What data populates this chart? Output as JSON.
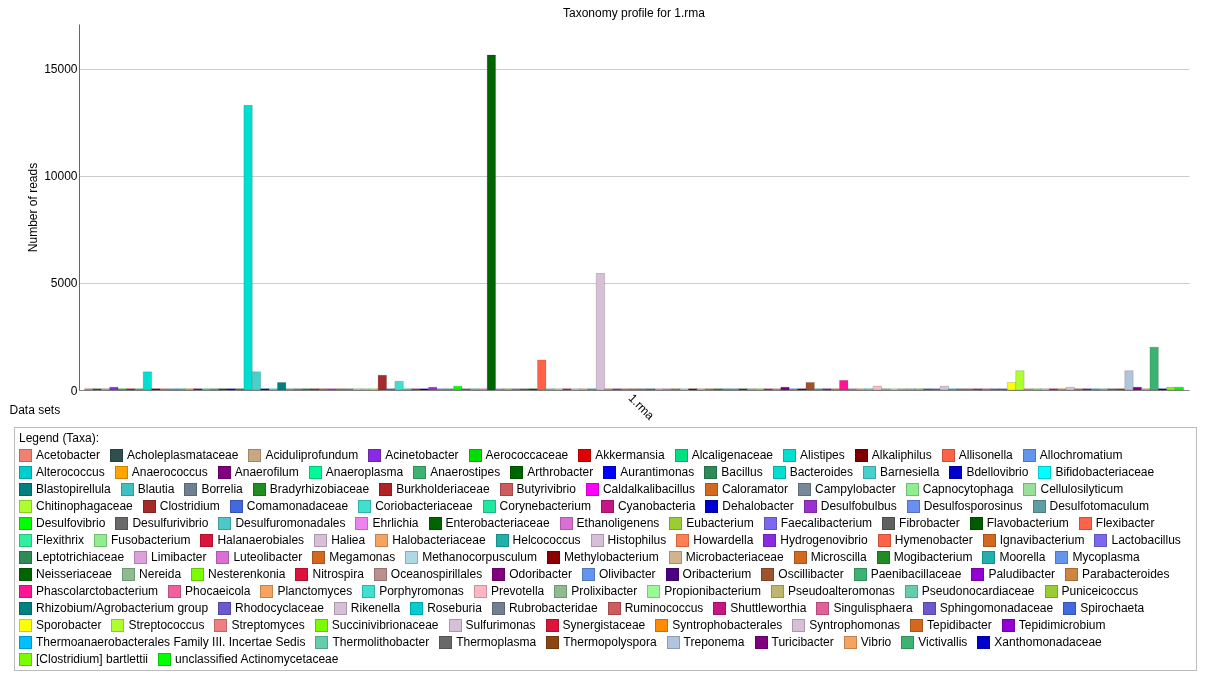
{
  "chart_data": {
    "type": "bar",
    "title": "Taxonomy profile for 1.rma",
    "xlabel": "Data sets",
    "ylabel": "Number of reads",
    "legend_title": "Legend (Taxa):",
    "categories": [
      "1.rma"
    ],
    "ylim": [
      0,
      17100
    ],
    "yticks": [
      0,
      5000,
      10000,
      15000
    ],
    "grid": "y",
    "legend": "bottom",
    "series": [
      {
        "name": "Acetobacter",
        "color": "#f08070",
        "values": [
          60
        ]
      },
      {
        "name": "Acholeplasmataceae",
        "color": "#2f4f4f",
        "values": [
          60
        ]
      },
      {
        "name": "Aciduliprofundum",
        "color": "#c8a882",
        "values": [
          60
        ]
      },
      {
        "name": "Acinetobacter",
        "color": "#8a2be2",
        "values": [
          130
        ]
      },
      {
        "name": "Aerococcaceae",
        "color": "#00e000",
        "values": [
          60
        ]
      },
      {
        "name": "Akkermansia",
        "color": "#e00000",
        "values": [
          60
        ]
      },
      {
        "name": "Alcaligenaceae",
        "color": "#00e080",
        "values": [
          60
        ]
      },
      {
        "name": "Alistipes",
        "color": "#00dfd0",
        "values": [
          850
        ]
      },
      {
        "name": "Alkaliphilus",
        "color": "#800000",
        "values": [
          60
        ]
      },
      {
        "name": "Allisonella",
        "color": "#ff6347",
        "values": [
          60
        ]
      },
      {
        "name": "Allochromatium",
        "color": "#6495ed",
        "values": [
          60
        ]
      },
      {
        "name": "Alterococcus",
        "color": "#00cecd",
        "values": [
          60
        ]
      },
      {
        "name": "Anaerococcus",
        "color": "#ffa500",
        "values": [
          60
        ]
      },
      {
        "name": "Anaerofilum",
        "color": "#800080",
        "values": [
          60
        ]
      },
      {
        "name": "Anaeroplasma",
        "color": "#00fa9a",
        "values": [
          60
        ]
      },
      {
        "name": "Anaerostipes",
        "color": "#3cb371",
        "values": [
          60
        ]
      },
      {
        "name": "Arthrobacter",
        "color": "#006400",
        "values": [
          60
        ]
      },
      {
        "name": "Aurantimonas",
        "color": "#0000ff",
        "values": [
          60
        ]
      },
      {
        "name": "Bacillus",
        "color": "#2e8b57",
        "values": [
          60
        ]
      },
      {
        "name": "Bacteroides",
        "color": "#00ded0",
        "values": [
          13300
        ]
      },
      {
        "name": "Barnesiella",
        "color": "#48d1cc",
        "values": [
          850
        ]
      },
      {
        "name": "Bdellovibrio",
        "color": "#0000cd",
        "values": [
          60
        ]
      },
      {
        "name": "Bifidobacteriaceae",
        "color": "#00ffff",
        "values": [
          60
        ]
      },
      {
        "name": "Blastopirellula",
        "color": "#008080",
        "values": [
          350
        ]
      },
      {
        "name": "Blautia",
        "color": "#40c0c0",
        "values": [
          60
        ]
      },
      {
        "name": "Borrelia",
        "color": "#708090",
        "values": [
          60
        ]
      },
      {
        "name": "Bradyrhizobiaceae",
        "color": "#228b22",
        "values": [
          60
        ]
      },
      {
        "name": "Burkholderiaceae",
        "color": "#b22222",
        "values": [
          60
        ]
      },
      {
        "name": "Butyrivibrio",
        "color": "#cd5c5c",
        "values": [
          60
        ]
      },
      {
        "name": "Caldalkalibacillus",
        "color": "#ff00ff",
        "values": [
          60
        ]
      },
      {
        "name": "Caloramator",
        "color": "#d2691e",
        "values": [
          60
        ]
      },
      {
        "name": "Campylobacter",
        "color": "#778899",
        "values": [
          60
        ]
      },
      {
        "name": "Capnocytophaga",
        "color": "#90ee90",
        "values": [
          60
        ]
      },
      {
        "name": "Cellulosilyticum",
        "color": "#98e098",
        "values": [
          60
        ]
      },
      {
        "name": "Chitinophagaceae",
        "color": "#adff2f",
        "values": [
          60
        ]
      },
      {
        "name": "Clostridium",
        "color": "#a52a2a",
        "values": [
          690
        ]
      },
      {
        "name": "Comamonadaceae",
        "color": "#4169e1",
        "values": [
          60
        ]
      },
      {
        "name": "Coriobacteriaceae",
        "color": "#40e0d0",
        "values": [
          410
        ]
      },
      {
        "name": "Corynebacterium",
        "color": "#1de9a0",
        "values": [
          60
        ]
      },
      {
        "name": "Cyanobacteria",
        "color": "#c71585",
        "values": [
          60
        ]
      },
      {
        "name": "Dehalobacter",
        "color": "#0000d0",
        "values": [
          60
        ]
      },
      {
        "name": "Desulfobulbus",
        "color": "#9932cc",
        "values": [
          130
        ]
      },
      {
        "name": "Desulfosporosinus",
        "color": "#6a8ff0",
        "values": [
          60
        ]
      },
      {
        "name": "Desulfotomaculum",
        "color": "#5f9ea0",
        "values": [
          60
        ]
      },
      {
        "name": "Desulfovibrio",
        "color": "#00ff00",
        "values": [
          180
        ]
      },
      {
        "name": "Desulfurivibrio",
        "color": "#696969",
        "values": [
          60
        ]
      },
      {
        "name": "Desulfuromonadales",
        "color": "#4cc8c8",
        "values": [
          60
        ]
      },
      {
        "name": "Ehrlichia",
        "color": "#ee82ee",
        "values": [
          60
        ]
      },
      {
        "name": "Enterobacteriaceae",
        "color": "#006400",
        "values": [
          15650
        ]
      },
      {
        "name": "Ethanoligenens",
        "color": "#da70d6",
        "values": [
          60
        ]
      },
      {
        "name": "Eubacterium",
        "color": "#9acd32",
        "values": [
          60
        ]
      },
      {
        "name": "Faecalibacterium",
        "color": "#7b68ee",
        "values": [
          60
        ]
      },
      {
        "name": "Fibrobacter",
        "color": "#606060",
        "values": [
          60
        ]
      },
      {
        "name": "Flavobacterium",
        "color": "#005a00",
        "values": [
          60
        ]
      },
      {
        "name": "Flexibacter",
        "color": "#ff6347",
        "values": [
          1400
        ]
      },
      {
        "name": "Flexithrix",
        "color": "#30f0a0",
        "values": [
          60
        ]
      },
      {
        "name": "Fusobacterium",
        "color": "#90ee90",
        "values": [
          60
        ]
      },
      {
        "name": "Halanaerobiales",
        "color": "#dc143c",
        "values": [
          60
        ]
      },
      {
        "name": "Haliea",
        "color": "#d8bfd8",
        "values": [
          60
        ]
      },
      {
        "name": "Halobacteriaceae",
        "color": "#f4a460",
        "values": [
          60
        ]
      },
      {
        "name": "Helcococcus",
        "color": "#20b2aa",
        "values": [
          60
        ]
      },
      {
        "name": "Histophilus",
        "color": "#d8bfd8",
        "values": [
          5450
        ]
      },
      {
        "name": "Howardella",
        "color": "#ff7f50",
        "values": [
          60
        ]
      },
      {
        "name": "Hydrogenovibrio",
        "color": "#8a2be2",
        "values": [
          60
        ]
      },
      {
        "name": "Hymenobacter",
        "color": "#ff6347",
        "values": [
          60
        ]
      },
      {
        "name": "Ignavibacterium",
        "color": "#d2691e",
        "values": [
          60
        ]
      },
      {
        "name": "Lactobacillus",
        "color": "#7b68ee",
        "values": [
          60
        ]
      },
      {
        "name": "Leptotrichiaceae",
        "color": "#2e8b57",
        "values": [
          60
        ]
      },
      {
        "name": "Limibacter",
        "color": "#dda0dd",
        "values": [
          60
        ]
      },
      {
        "name": "Luteolibacter",
        "color": "#da70d6",
        "values": [
          60
        ]
      },
      {
        "name": "Megamonas",
        "color": "#d2691e",
        "values": [
          60
        ]
      },
      {
        "name": "Methanocorpusculum",
        "color": "#add8e6",
        "values": [
          60
        ]
      },
      {
        "name": "Methylobacterium",
        "color": "#8b0000",
        "values": [
          60
        ]
      },
      {
        "name": "Microbacteriaceae",
        "color": "#d2b48c",
        "values": [
          60
        ]
      },
      {
        "name": "Microscilla",
        "color": "#d2691e",
        "values": [
          60
        ]
      },
      {
        "name": "Mogibacterium",
        "color": "#228b22",
        "values": [
          60
        ]
      },
      {
        "name": "Moorella",
        "color": "#20b2aa",
        "values": [
          60
        ]
      },
      {
        "name": "Mycoplasma",
        "color": "#6495ed",
        "values": [
          60
        ]
      },
      {
        "name": "Neisseriaceae",
        "color": "#006400",
        "values": [
          60
        ]
      },
      {
        "name": "Nereida",
        "color": "#8fbc8f",
        "values": [
          60
        ]
      },
      {
        "name": "Nesterenkonia",
        "color": "#7cfc00",
        "values": [
          60
        ]
      },
      {
        "name": "Nitrospira",
        "color": "#dc143c",
        "values": [
          60
        ]
      },
      {
        "name": "Oceanospirillales",
        "color": "#bc8f8f",
        "values": [
          60
        ]
      },
      {
        "name": "Odoribacter",
        "color": "#800080",
        "values": [
          130
        ]
      },
      {
        "name": "Olivibacter",
        "color": "#6495ed",
        "values": [
          60
        ]
      },
      {
        "name": "Oribacterium",
        "color": "#4b0082",
        "values": [
          60
        ]
      },
      {
        "name": "Oscillibacter",
        "color": "#a0522d",
        "values": [
          350
        ]
      },
      {
        "name": "Paenibacillaceae",
        "color": "#3cb371",
        "values": [
          60
        ]
      },
      {
        "name": "Paludibacter",
        "color": "#9400d3",
        "values": [
          60
        ]
      },
      {
        "name": "Parabacteroides",
        "color": "#cd853f",
        "values": [
          60
        ]
      },
      {
        "name": "Phascolarctobacterium",
        "color": "#ff1493",
        "values": [
          450
        ]
      },
      {
        "name": "Phocaeicola",
        "color": "#f060a0",
        "values": [
          60
        ]
      },
      {
        "name": "Planctomyces",
        "color": "#f4a460",
        "values": [
          60
        ]
      },
      {
        "name": "Porphyromonas",
        "color": "#40e0d0",
        "values": [
          60
        ]
      },
      {
        "name": "Prevotella",
        "color": "#ffb6c1",
        "values": [
          180
        ]
      },
      {
        "name": "Prolixibacter",
        "color": "#8fbc8f",
        "values": [
          60
        ]
      },
      {
        "name": "Propionibacterium",
        "color": "#98fb98",
        "values": [
          60
        ]
      },
      {
        "name": "Pseudoalteromonas",
        "color": "#bdb76b",
        "values": [
          60
        ]
      },
      {
        "name": "Pseudonocardiaceae",
        "color": "#66cdaa",
        "values": [
          60
        ]
      },
      {
        "name": "Puniceicoccus",
        "color": "#9acd32",
        "values": [
          60
        ]
      },
      {
        "name": "Rhizobium/Agrobacterium group",
        "color": "#008080",
        "values": [
          60
        ]
      },
      {
        "name": "Rhodocyclaceae",
        "color": "#6a5acd",
        "values": [
          60
        ]
      },
      {
        "name": "Rikenella",
        "color": "#d8bfd8",
        "values": [
          180
        ]
      },
      {
        "name": "Roseburia",
        "color": "#00ced1",
        "values": [
          60
        ]
      },
      {
        "name": "Rubrobacteridae",
        "color": "#708090",
        "values": [
          60
        ]
      },
      {
        "name": "Ruminococcus",
        "color": "#cd5c5c",
        "values": [
          60
        ]
      },
      {
        "name": "Shuttleworthia",
        "color": "#c71585",
        "values": [
          60
        ]
      },
      {
        "name": "Singulisphaera",
        "color": "#e0609a",
        "values": [
          60
        ]
      },
      {
        "name": "Sphingomonadaceae",
        "color": "#6a5acd",
        "values": [
          60
        ]
      },
      {
        "name": "Spirochaeta",
        "color": "#4169e1",
        "values": [
          60
        ]
      },
      {
        "name": "Sporobacter",
        "color": "#ffff00",
        "values": [
          350
        ]
      },
      {
        "name": "Streptococcus",
        "color": "#adff2f",
        "values": [
          900
        ]
      },
      {
        "name": "Streptomyces",
        "color": "#f08080",
        "values": [
          60
        ]
      },
      {
        "name": "Succinivibrionaceae",
        "color": "#7cfc00",
        "values": [
          60
        ]
      },
      {
        "name": "Sulfurimonas",
        "color": "#d8bfd8",
        "values": [
          60
        ]
      },
      {
        "name": "Synergistaceae",
        "color": "#dc143c",
        "values": [
          60
        ]
      },
      {
        "name": "Syntrophobacterales",
        "color": "#ff8c00",
        "values": [
          60
        ]
      },
      {
        "name": "Syntrophomonas",
        "color": "#d8bfd8",
        "values": [
          130
        ]
      },
      {
        "name": "Tepidibacter",
        "color": "#d2691e",
        "values": [
          60
        ]
      },
      {
        "name": "Tepidimicrobium",
        "color": "#9400d3",
        "values": [
          60
        ]
      },
      {
        "name": "Thermoanaerobacterales Family III. Incertae Sedis",
        "color": "#00bfff",
        "values": [
          60
        ]
      },
      {
        "name": "Thermolithobacter",
        "color": "#66cdaa",
        "values": [
          60
        ]
      },
      {
        "name": "Thermoplasma",
        "color": "#696969",
        "values": [
          60
        ]
      },
      {
        "name": "Thermopolyspora",
        "color": "#8b4513",
        "values": [
          60
        ]
      },
      {
        "name": "Treponema",
        "color": "#b0c4de",
        "values": [
          900
        ]
      },
      {
        "name": "Turicibacter",
        "color": "#800080",
        "values": [
          130
        ]
      },
      {
        "name": "Vibrio",
        "color": "#f4a460",
        "values": [
          60
        ]
      },
      {
        "name": "Victivallis",
        "color": "#3cb371",
        "values": [
          2000
        ]
      },
      {
        "name": "Xanthomonadaceae",
        "color": "#0000cd",
        "values": [
          60
        ]
      },
      {
        "name": "[Clostridium] bartlettii",
        "color": "#7cfc00",
        "values": [
          130
        ]
      },
      {
        "name": "unclassified Actinomycetaceae",
        "color": "#00ff00",
        "values": [
          130
        ]
      }
    ]
  }
}
